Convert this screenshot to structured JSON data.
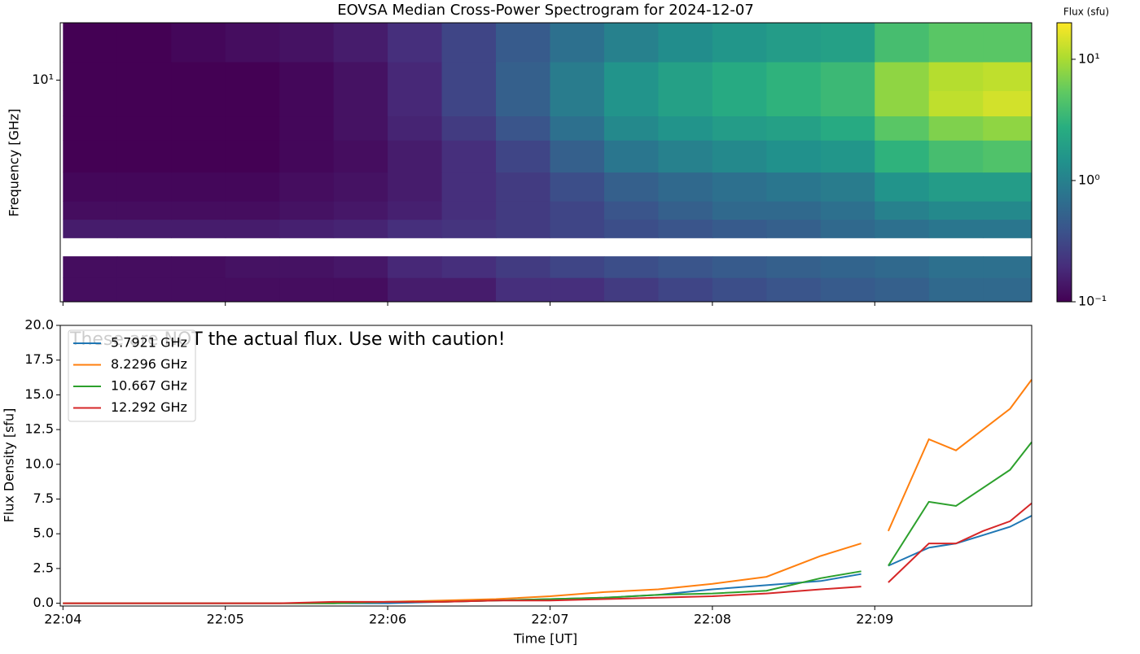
{
  "chart_data": [
    {
      "type": "heatmap",
      "title": "EOVSA Median Cross-Power Spectrogram for 2024-12-07",
      "y_label": "Frequency [GHz]",
      "log_y": true,
      "xlim": [
        "22:03:59",
        "22:09:58"
      ],
      "xticks": [
        "22:04:00",
        "22:05:00",
        "22:06:00",
        "22:07:00",
        "22:08:00",
        "22:09:00"
      ],
      "ylim": [
        1.1,
        17.7
      ],
      "yticks": [
        {
          "value": 10,
          "label": "10¹"
        }
      ],
      "time_edges": [
        "22:04:00",
        "22:04:20",
        "22:04:40",
        "22:05:00",
        "22:05:20",
        "22:05:40",
        "22:06:00",
        "22:06:20",
        "22:06:40",
        "22:07:00",
        "22:07:20",
        "22:07:40",
        "22:08:00",
        "22:08:20",
        "22:08:40",
        "22:09:00",
        "22:09:20",
        "22:09:40",
        "22:09:58"
      ],
      "freq_edges": [
        1.1,
        1.4,
        1.73,
        2.08,
        2.5,
        3.0,
        4.0,
        5.5,
        7.0,
        9.0,
        12,
        17.7
      ],
      "z": [
        [
          0.12,
          0.12,
          0.12,
          0.12,
          0.12,
          0.12,
          0.15,
          0.15,
          0.2,
          0.2,
          0.25,
          0.3,
          0.35,
          0.4,
          0.45,
          0.5,
          0.6,
          0.6
        ],
        [
          0.12,
          0.12,
          0.12,
          0.13,
          0.13,
          0.14,
          0.18,
          0.2,
          0.25,
          0.3,
          0.35,
          0.4,
          0.45,
          0.5,
          0.55,
          0.6,
          0.7,
          0.7
        ],
        [
          null,
          null,
          null,
          null,
          null,
          null,
          null,
          null,
          null,
          null,
          null,
          null,
          null,
          null,
          null,
          null,
          null,
          null
        ],
        [
          0.15,
          0.15,
          0.15,
          0.15,
          0.16,
          0.17,
          0.2,
          0.22,
          0.25,
          0.3,
          0.35,
          0.4,
          0.45,
          0.5,
          0.6,
          0.7,
          0.8,
          0.8
        ],
        [
          0.12,
          0.12,
          0.12,
          0.12,
          0.13,
          0.14,
          0.16,
          0.2,
          0.25,
          0.3,
          0.4,
          0.5,
          0.6,
          0.6,
          0.7,
          1.0,
          1.2,
          1.2
        ],
        [
          0.11,
          0.11,
          0.11,
          0.11,
          0.12,
          0.13,
          0.15,
          0.2,
          0.25,
          0.35,
          0.5,
          0.6,
          0.7,
          0.8,
          0.9,
          1.5,
          1.8,
          1.8
        ],
        [
          0.1,
          0.1,
          0.1,
          0.1,
          0.11,
          0.12,
          0.15,
          0.2,
          0.3,
          0.5,
          0.8,
          1.0,
          1.2,
          1.4,
          1.6,
          3,
          4,
          4.5
        ],
        [
          0.1,
          0.1,
          0.1,
          0.1,
          0.11,
          0.13,
          0.17,
          0.25,
          0.4,
          0.7,
          1.2,
          1.5,
          1.8,
          2,
          2.5,
          5,
          7,
          8
        ],
        [
          0.1,
          0.1,
          0.1,
          0.1,
          0.11,
          0.13,
          0.18,
          0.3,
          0.5,
          0.9,
          1.5,
          2,
          2.5,
          3,
          3.5,
          8,
          12,
          14
        ],
        [
          0.1,
          0.1,
          0.1,
          0.1,
          0.11,
          0.13,
          0.18,
          0.3,
          0.5,
          0.9,
          1.5,
          2,
          2.5,
          3,
          3.5,
          8,
          11,
          12
        ],
        [
          0.1,
          0.1,
          0.11,
          0.12,
          0.13,
          0.15,
          0.2,
          0.3,
          0.45,
          0.7,
          1.0,
          1.3,
          1.6,
          1.8,
          2,
          4,
          5,
          5
        ]
      ],
      "colorbar": {
        "label": "Flux (sfu)",
        "colormap": "viridis",
        "log": true,
        "lim": [
          0.1,
          20
        ],
        "ticks": [
          {
            "value": 0.1,
            "label": "10⁻¹"
          },
          {
            "value": 1,
            "label": "10⁰"
          },
          {
            "value": 10,
            "label": "10¹"
          }
        ]
      }
    },
    {
      "type": "line",
      "x_label": "Time [UT]",
      "y_label": "Flux Density [sfu]",
      "annotation": "These are NOT the actual flux. Use with caution!",
      "legend": "upper left",
      "xlim": [
        "22:03:59",
        "22:09:58"
      ],
      "xticks": [
        {
          "value": "22:04:00",
          "label": "22:04"
        },
        {
          "value": "22:05:00",
          "label": "22:05"
        },
        {
          "value": "22:06:00",
          "label": "22:06"
        },
        {
          "value": "22:07:00",
          "label": "22:07"
        },
        {
          "value": "22:08:00",
          "label": "22:08"
        },
        {
          "value": "22:09:00",
          "label": "22:09"
        }
      ],
      "ylim": [
        -0.2,
        20
      ],
      "yticks": [
        {
          "value": 0,
          "label": "0.0"
        },
        2.5,
        {
          "value": 5,
          "label": "5.0"
        },
        7.5,
        {
          "value": 10,
          "label": "10.0"
        },
        12.5,
        {
          "value": 15,
          "label": "15.0"
        },
        17.5,
        {
          "value": 20,
          "label": "20.0"
        }
      ],
      "x": [
        "22:04:00",
        "22:04:20",
        "22:04:40",
        "22:05:00",
        "22:05:20",
        "22:05:40",
        "22:06:00",
        "22:06:20",
        "22:06:40",
        "22:07:00",
        "22:07:20",
        "22:07:40",
        "22:08:00",
        "22:08:20",
        "22:08:40",
        "22:08:55",
        "22:09:00",
        "22:09:05",
        "22:09:20",
        "22:09:30",
        "22:09:40",
        "22:09:50",
        "22:09:58"
      ],
      "series": [
        {
          "name": "5.7921 GHz",
          "color": "#1f77b4",
          "values": [
            0,
            0,
            0,
            0,
            0,
            0,
            0,
            0.1,
            0.2,
            0.3,
            0.4,
            0.6,
            1.0,
            1.3,
            1.6,
            2.1,
            null,
            2.7,
            4.0,
            4.3,
            4.9,
            5.5,
            6.3
          ]
        },
        {
          "name": "8.2296 GHz",
          "color": "#ff7f0e",
          "values": [
            0,
            0,
            0,
            0,
            0,
            0,
            0.1,
            0.2,
            0.3,
            0.5,
            0.8,
            1.0,
            1.4,
            1.9,
            3.4,
            4.3,
            null,
            5.2,
            11.8,
            11.0,
            12.5,
            14.0,
            16.1
          ]
        },
        {
          "name": "10.667 GHz",
          "color": "#2ca02c",
          "values": [
            0,
            0,
            0,
            0,
            0,
            0,
            0.1,
            0.1,
            0.2,
            0.3,
            0.4,
            0.6,
            0.7,
            0.9,
            1.8,
            2.3,
            null,
            2.7,
            7.3,
            7.0,
            8.3,
            9.6,
            11.6
          ]
        },
        {
          "name": "12.292 GHz",
          "color": "#d62728",
          "values": [
            0,
            0,
            0,
            0,
            0,
            0.1,
            0.1,
            0.1,
            0.2,
            0.2,
            0.3,
            0.4,
            0.5,
            0.7,
            1.0,
            1.2,
            null,
            1.5,
            4.3,
            4.3,
            5.2,
            5.9,
            7.2
          ]
        }
      ]
    }
  ]
}
